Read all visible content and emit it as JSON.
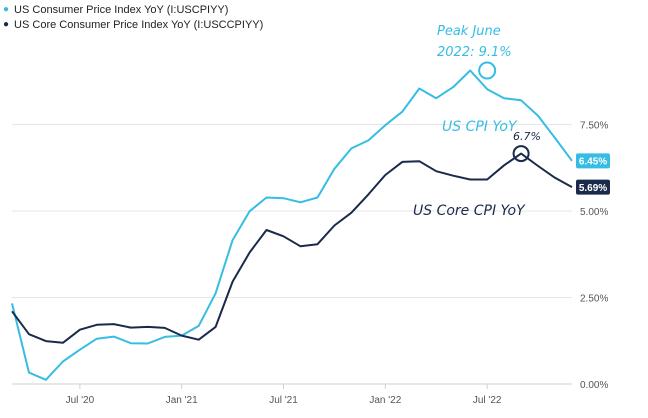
{
  "chart_data": {
    "type": "line",
    "x": [
      "2020-03",
      "2020-04",
      "2020-05",
      "2020-06",
      "2020-07",
      "2020-08",
      "2020-09",
      "2020-10",
      "2020-11",
      "2020-12",
      "2021-01",
      "2021-02",
      "2021-03",
      "2021-04",
      "2021-05",
      "2021-06",
      "2021-07",
      "2021-08",
      "2021-09",
      "2021-10",
      "2021-11",
      "2021-12",
      "2022-01",
      "2022-02",
      "2022-03",
      "2022-04",
      "2022-05",
      "2022-06",
      "2022-07",
      "2022-08",
      "2022-09",
      "2022-10",
      "2022-11",
      "2022-12"
    ],
    "series": [
      {
        "name": "US Consumer Price Index YoY (I:USCPIYY)",
        "color": "#36bde3",
        "values": [
          2.33,
          0.33,
          0.12,
          0.65,
          0.99,
          1.31,
          1.37,
          1.18,
          1.17,
          1.36,
          1.4,
          1.68,
          2.62,
          4.16,
          4.99,
          5.39,
          5.37,
          5.25,
          5.39,
          6.22,
          6.81,
          7.04,
          7.48,
          7.87,
          8.54,
          8.26,
          8.58,
          9.06,
          8.52,
          8.26,
          8.2,
          7.75,
          7.11,
          6.45
        ]
      },
      {
        "name": "US Core Consumer Price Index YoY (I:USCCPIYY)",
        "color": "#1a2a4a",
        "values": [
          2.1,
          1.44,
          1.24,
          1.19,
          1.57,
          1.71,
          1.73,
          1.63,
          1.65,
          1.62,
          1.4,
          1.28,
          1.65,
          2.96,
          3.8,
          4.45,
          4.27,
          3.98,
          4.04,
          4.58,
          4.95,
          5.48,
          6.04,
          6.42,
          6.44,
          6.15,
          6.02,
          5.91,
          5.91,
          6.32,
          6.66,
          6.3,
          5.96,
          5.69
        ]
      }
    ],
    "x_ticks": [
      {
        "label": "Jul '20",
        "date": "2020-07"
      },
      {
        "label": "Jan '21",
        "date": "2021-01"
      },
      {
        "label": "Jul '21",
        "date": "2021-07"
      },
      {
        "label": "Jan '22",
        "date": "2022-01"
      },
      {
        "label": "Jul '22",
        "date": "2022-07"
      }
    ],
    "y_ticks": [
      {
        "label": "0.00%",
        "value": 0
      },
      {
        "label": "2.50%",
        "value": 2.5
      },
      {
        "label": "5.00%",
        "value": 5
      },
      {
        "label": "7.50%",
        "value": 7.5
      }
    ],
    "ylim": [
      0,
      10
    ],
    "last_value_badges": [
      {
        "label": "6.45%",
        "value": 6.45,
        "color": "#36bde3"
      },
      {
        "label": "5.69%",
        "value": 5.69,
        "color": "#1a2a4a"
      }
    ],
    "annotations": [
      {
        "lines": [
          "Peak June",
          "2022: 9.1%"
        ],
        "color": "#36bde3",
        "date": "2022-07",
        "value": 9.06
      },
      {
        "lines": [
          "US CPI YoY"
        ],
        "color": "#36bde3"
      },
      {
        "lines": [
          "6.7%"
        ],
        "color": "#1a2a4a",
        "date": "2022-09",
        "value": 6.66
      },
      {
        "lines": [
          "US Core CPI YoY"
        ],
        "color": "#1a2a4a"
      }
    ],
    "grid": "horizontal"
  }
}
